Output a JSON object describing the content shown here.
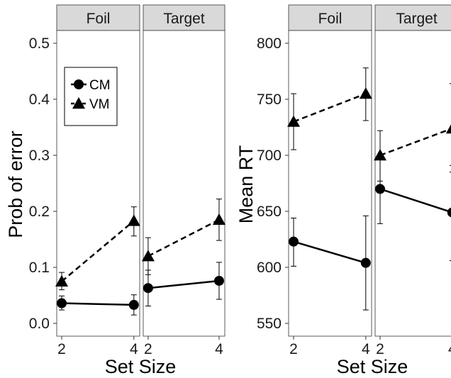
{
  "chart_data": [
    {
      "type": "line",
      "ylabel": "Prob of error",
      "xlabel": "Set Size",
      "x_ticks": [
        "2",
        "4"
      ],
      "ylim": [
        0.0,
        0.5
      ],
      "y_ticks": [
        0.0,
        0.1,
        0.2,
        0.3,
        0.4,
        0.5
      ],
      "y_tick_labels": [
        "0.0",
        "0.1",
        "0.2",
        "0.3",
        "0.4",
        "0.5"
      ],
      "legend": {
        "placement": "top-left",
        "entries": [
          {
            "label": "CM",
            "marker": "circle"
          },
          {
            "label": "VM",
            "marker": "triangle"
          }
        ]
      },
      "facets": [
        {
          "label": "Foil",
          "series": [
            {
              "name": "CM",
              "x": [
                2,
                4
              ],
              "values": [
                0.036,
                0.033
              ],
              "err_low": [
                0.024,
                0.015
              ],
              "err_high": [
                0.049,
                0.051
              ]
            },
            {
              "name": "VM",
              "x": [
                2,
                4
              ],
              "values": [
                0.075,
                0.183
              ],
              "err_low": [
                0.06,
                0.156
              ],
              "err_high": [
                0.091,
                0.208
              ]
            }
          ]
        },
        {
          "label": "Target",
          "series": [
            {
              "name": "CM",
              "x": [
                2,
                4
              ],
              "values": [
                0.063,
                0.076
              ],
              "err_low": [
                0.031,
                0.043
              ],
              "err_high": [
                0.095,
                0.109
              ]
            },
            {
              "name": "VM",
              "x": [
                2,
                4
              ],
              "values": [
                0.12,
                0.185
              ],
              "err_low": [
                0.087,
                0.148
              ],
              "err_high": [
                0.153,
                0.222
              ]
            }
          ]
        }
      ]
    },
    {
      "type": "line",
      "ylabel": "Mean RT",
      "xlabel": "Set Size",
      "x_ticks": [
        "2",
        "4"
      ],
      "ylim": [
        540,
        810
      ],
      "y_ticks": [
        550,
        600,
        650,
        700,
        750,
        800
      ],
      "y_tick_labels": [
        "550",
        "600",
        "650",
        "700",
        "750",
        "800"
      ],
      "facets": [
        {
          "label": "Foil",
          "series": [
            {
              "name": "CM",
              "x": [
                2,
                4
              ],
              "values": [
                623,
                604
              ],
              "err_low": [
                601,
                562
              ],
              "err_high": [
                644,
                646
              ]
            },
            {
              "name": "VM",
              "x": [
                2,
                4
              ],
              "values": [
                730,
                755
              ],
              "err_low": [
                705,
                731
              ],
              "err_high": [
                755,
                778
              ]
            }
          ]
        },
        {
          "label": "Target",
          "series": [
            {
              "name": "CM",
              "x": [
                2,
                4
              ],
              "values": [
                670,
                649
              ],
              "err_low": [
                639,
                606
              ],
              "err_high": [
                700,
                691
              ]
            },
            {
              "name": "VM",
              "x": [
                2,
                4
              ],
              "values": [
                700,
                724
              ],
              "err_low": [
                677,
                685
              ],
              "err_high": [
                722,
                764
              ]
            }
          ]
        }
      ]
    }
  ]
}
